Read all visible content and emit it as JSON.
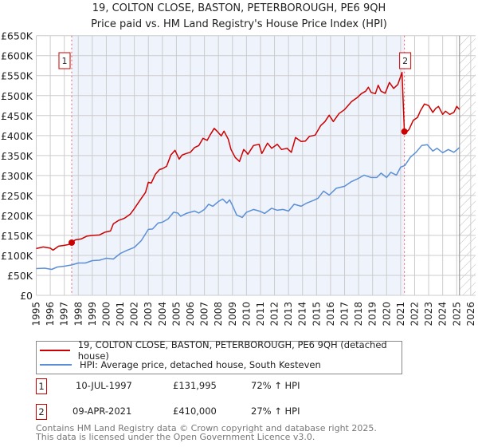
{
  "title": "19, COLTON CLOSE, BASTON, PETERBOROUGH, PE6 9QH",
  "subtitle": "Price paid vs. HM Land Registry's House Price Index (HPI)",
  "colors": {
    "property": "#cc0000",
    "hpi": "#5b8fd6",
    "shade": "#eef3fc",
    "grid": "#cccccc"
  },
  "chart_data": {
    "type": "line",
    "title": "19, COLTON CLOSE, BASTON, PETERBOROUGH, PE6 9QH",
    "xlim": [
      1995,
      2026
    ],
    "ylim": [
      0,
      650000
    ],
    "grid": true,
    "x_ticks": [
      "1995",
      "1996",
      "1997",
      "1998",
      "1999",
      "2000",
      "2001",
      "2002",
      "2003",
      "2004",
      "2005",
      "2006",
      "2007",
      "2008",
      "2009",
      "2010",
      "2011",
      "2012",
      "2013",
      "2014",
      "2015",
      "2016",
      "2017",
      "2018",
      "2019",
      "2020",
      "2021",
      "2022",
      "2023",
      "2024",
      "2025",
      "2026"
    ],
    "y_ticks": [
      0,
      50000,
      100000,
      150000,
      200000,
      250000,
      300000,
      350000,
      400000,
      450000,
      500000,
      550000,
      600000,
      650000
    ],
    "y_tick_labels": [
      "£0",
      "£50K",
      "£100K",
      "£150K",
      "£200K",
      "£250K",
      "£300K",
      "£350K",
      "£400K",
      "£450K",
      "£500K",
      "£550K",
      "£600K",
      "£650K"
    ],
    "forecast_hatch_from": 2025.2,
    "shaded_between_sales": [
      1997.53,
      2021.27
    ],
    "series": [
      {
        "name": "19, COLTON CLOSE, BASTON, PETERBOROUGH, PE6 9QH (detached house)",
        "points": [
          [
            1995,
            117
          ],
          [
            1995.5,
            121
          ],
          [
            1996,
            118
          ],
          [
            1996.2,
            113
          ],
          [
            1996.6,
            123
          ],
          [
            1997,
            125
          ],
          [
            1997.3,
            127
          ],
          [
            1997.53,
            132
          ],
          [
            1997.8,
            139
          ],
          [
            1998.2,
            141
          ],
          [
            1998.6,
            148
          ],
          [
            1999,
            150
          ],
          [
            1999.5,
            151
          ],
          [
            1999.9,
            158
          ],
          [
            2000.3,
            161
          ],
          [
            2000.5,
            179
          ],
          [
            2000.9,
            188
          ],
          [
            2001.3,
            193
          ],
          [
            2001.7,
            203
          ],
          [
            2002,
            217
          ],
          [
            2002.4,
            238
          ],
          [
            2002.8,
            258
          ],
          [
            2003,
            283
          ],
          [
            2003.2,
            281
          ],
          [
            2003.5,
            303
          ],
          [
            2003.8,
            315
          ],
          [
            2004,
            317
          ],
          [
            2004.3,
            323
          ],
          [
            2004.6,
            351
          ],
          [
            2004.9,
            363
          ],
          [
            2005.1,
            348
          ],
          [
            2005.2,
            341
          ],
          [
            2005.4,
            351
          ],
          [
            2005.7,
            355
          ],
          [
            2006,
            358
          ],
          [
            2006.3,
            370
          ],
          [
            2006.6,
            375
          ],
          [
            2006.9,
            393
          ],
          [
            2007.2,
            388
          ],
          [
            2007.4,
            401
          ],
          [
            2007.7,
            418
          ],
          [
            2007.9,
            411
          ],
          [
            2008.2,
            399
          ],
          [
            2008.4,
            411
          ],
          [
            2008.7,
            391
          ],
          [
            2008.9,
            365
          ],
          [
            2009.2,
            345
          ],
          [
            2009.5,
            335
          ],
          [
            2009.8,
            365
          ],
          [
            2010,
            358
          ],
          [
            2010.1,
            353
          ],
          [
            2010.5,
            375
          ],
          [
            2010.9,
            378
          ],
          [
            2011.1,
            355
          ],
          [
            2011.5,
            381
          ],
          [
            2011.8,
            368
          ],
          [
            2012.2,
            378
          ],
          [
            2012.5,
            365
          ],
          [
            2012.9,
            368
          ],
          [
            2013.2,
            358
          ],
          [
            2013.5,
            395
          ],
          [
            2013.9,
            385
          ],
          [
            2014.2,
            386
          ],
          [
            2014.5,
            398
          ],
          [
            2014.9,
            401
          ],
          [
            2015.3,
            425
          ],
          [
            2015.6,
            435
          ],
          [
            2015.9,
            451
          ],
          [
            2016.2,
            435
          ],
          [
            2016.6,
            455
          ],
          [
            2017,
            465
          ],
          [
            2017.5,
            485
          ],
          [
            2017.9,
            495
          ],
          [
            2018.2,
            505
          ],
          [
            2018.5,
            511
          ],
          [
            2018.7,
            521
          ],
          [
            2018.9,
            508
          ],
          [
            2019.2,
            505
          ],
          [
            2019.4,
            526
          ],
          [
            2019.6,
            511
          ],
          [
            2019.9,
            506
          ],
          [
            2020.2,
            533
          ],
          [
            2020.5,
            518
          ],
          [
            2020.8,
            528
          ],
          [
            2021.1,
            558
          ],
          [
            2021.27,
            410
          ],
          [
            2021.4,
            408
          ],
          [
            2021.6,
            415
          ],
          [
            2021.9,
            438
          ],
          [
            2022.2,
            445
          ],
          [
            2022.4,
            461
          ],
          [
            2022.7,
            479
          ],
          [
            2023,
            475
          ],
          [
            2023.3,
            458
          ],
          [
            2023.5,
            468
          ],
          [
            2023.7,
            473
          ],
          [
            2024,
            453
          ],
          [
            2024.2,
            461
          ],
          [
            2024.5,
            453
          ],
          [
            2024.8,
            458
          ],
          [
            2025,
            473
          ],
          [
            2025.2,
            465
          ]
        ]
      },
      {
        "name": "HPI: Average price, detached house, South Kesteven",
        "points": [
          [
            1995,
            67
          ],
          [
            1995.6,
            68
          ],
          [
            1996.1,
            65
          ],
          [
            1996.5,
            71
          ],
          [
            1997,
            73
          ],
          [
            1997.5,
            76
          ],
          [
            1998,
            81
          ],
          [
            1998.5,
            81
          ],
          [
            1999,
            87
          ],
          [
            1999.5,
            88
          ],
          [
            2000,
            93
          ],
          [
            2000.5,
            91
          ],
          [
            2001,
            105
          ],
          [
            2001.5,
            113
          ],
          [
            2002,
            120
          ],
          [
            2002.5,
            137
          ],
          [
            2003,
            165
          ],
          [
            2003.3,
            166
          ],
          [
            2003.7,
            181
          ],
          [
            2004,
            183
          ],
          [
            2004.4,
            191
          ],
          [
            2004.8,
            208
          ],
          [
            2005.1,
            206
          ],
          [
            2005.3,
            198
          ],
          [
            2005.7,
            205
          ],
          [
            2006,
            208
          ],
          [
            2006.3,
            211
          ],
          [
            2006.6,
            206
          ],
          [
            2007,
            215
          ],
          [
            2007.3,
            228
          ],
          [
            2007.6,
            223
          ],
          [
            2008,
            235
          ],
          [
            2008.3,
            241
          ],
          [
            2008.6,
            231
          ],
          [
            2008.8,
            239
          ],
          [
            2009,
            225
          ],
          [
            2009.3,
            201
          ],
          [
            2009.7,
            195
          ],
          [
            2010,
            208
          ],
          [
            2010.5,
            215
          ],
          [
            2011,
            210
          ],
          [
            2011.3,
            205
          ],
          [
            2011.8,
            218
          ],
          [
            2012.2,
            213
          ],
          [
            2012.6,
            215
          ],
          [
            2013,
            211
          ],
          [
            2013.4,
            228
          ],
          [
            2013.9,
            223
          ],
          [
            2014.3,
            231
          ],
          [
            2014.8,
            238
          ],
          [
            2015.1,
            243
          ],
          [
            2015.5,
            261
          ],
          [
            2015.9,
            251
          ],
          [
            2016.4,
            268
          ],
          [
            2017,
            273
          ],
          [
            2017.5,
            285
          ],
          [
            2018,
            293
          ],
          [
            2018.4,
            301
          ],
          [
            2018.9,
            295
          ],
          [
            2019.3,
            295
          ],
          [
            2019.6,
            306
          ],
          [
            2020,
            295
          ],
          [
            2020.3,
            308
          ],
          [
            2020.7,
            301
          ],
          [
            2021,
            321
          ],
          [
            2021.3,
            325
          ],
          [
            2021.7,
            346
          ],
          [
            2022.1,
            358
          ],
          [
            2022.5,
            375
          ],
          [
            2022.9,
            377
          ],
          [
            2023.3,
            361
          ],
          [
            2023.6,
            368
          ],
          [
            2024,
            357
          ],
          [
            2024.4,
            365
          ],
          [
            2024.8,
            358
          ],
          [
            2025.2,
            370
          ]
        ]
      }
    ],
    "value_units": "£ thousands",
    "annotations": [
      {
        "label": "1",
        "x": 1997.53,
        "y": 131.995
      },
      {
        "label": "2",
        "x": 2021.27,
        "y": 410
      }
    ]
  },
  "legend": {
    "property": "19, COLTON CLOSE, BASTON, PETERBOROUGH, PE6 9QH (detached house)",
    "hpi": "HPI: Average price, detached house, South Kesteven"
  },
  "sales": [
    {
      "num": "1",
      "date": "10-JUL-1997",
      "price": "£131,995",
      "hpi": "72% ↑ HPI"
    },
    {
      "num": "2",
      "date": "09-APR-2021",
      "price": "£410,000",
      "hpi": "27% ↑ HPI"
    }
  ],
  "footer": {
    "line1": "Contains HM Land Registry data © Crown copyright and database right 2025.",
    "line2": "This data is licensed under the Open Government Licence v3.0."
  }
}
